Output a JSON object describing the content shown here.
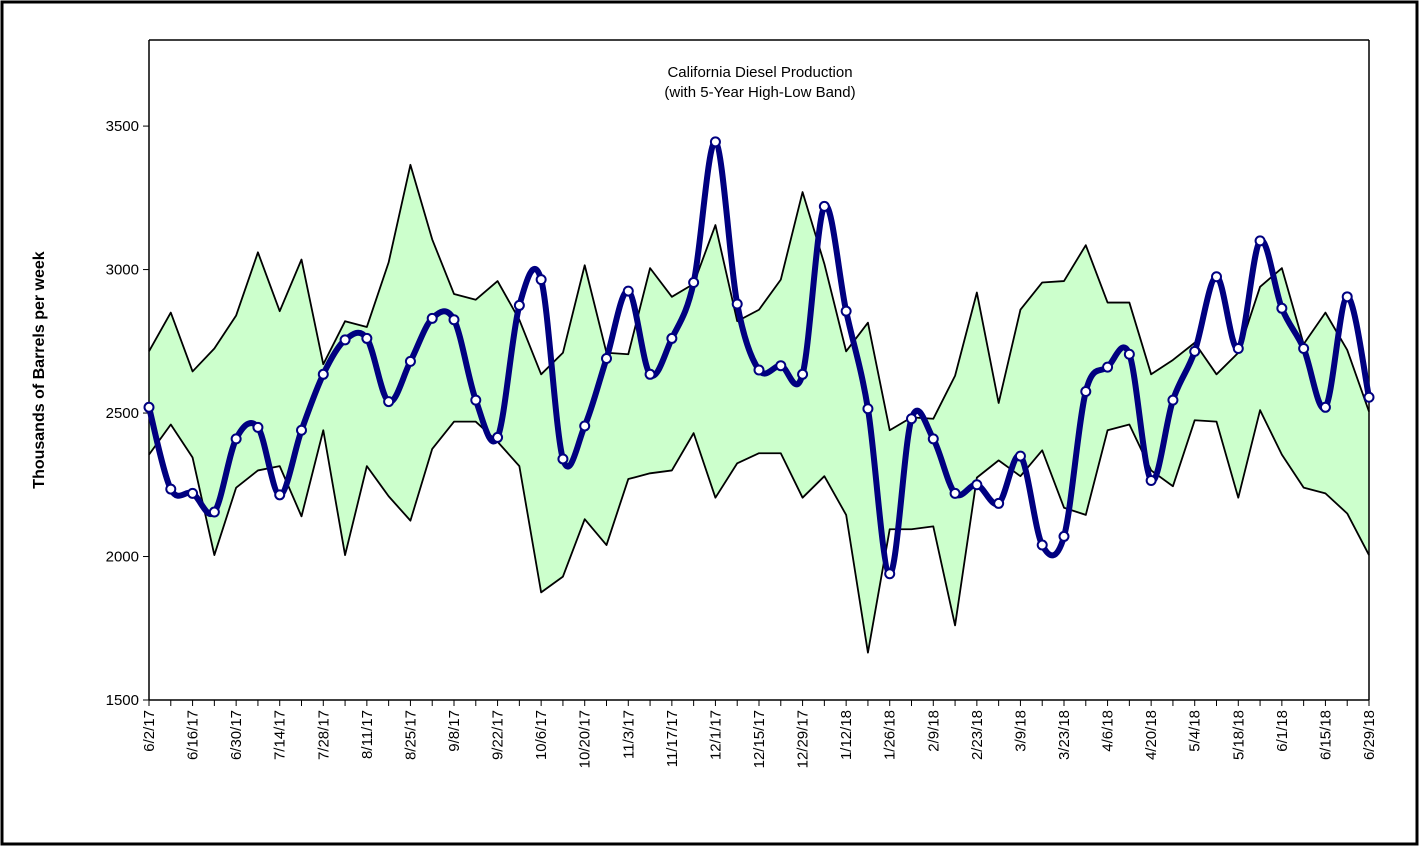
{
  "chart_data": {
    "type": "line",
    "title": "California Diesel Production",
    "subtitle": "(with 5-Year High-Low Band)",
    "y_label": "Thousands of Barrels per week",
    "categories": [
      "6/2/17",
      null,
      "6/16/17",
      null,
      "6/30/17",
      null,
      "7/14/17",
      null,
      "7/28/17",
      null,
      "8/11/17",
      null,
      "8/25/17",
      null,
      "9/8/17",
      null,
      "9/22/17",
      null,
      "10/6/17",
      null,
      "10/20/17",
      null,
      "11/3/17",
      null,
      "11/17/17",
      null,
      "12/1/17",
      null,
      "12/15/17",
      null,
      "12/29/17",
      null,
      "1/12/18",
      null,
      "1/26/18",
      null,
      "2/9/18",
      null,
      "2/23/18",
      null,
      "3/9/18",
      null,
      "3/23/18",
      null,
      "4/6/18",
      null,
      "4/20/18",
      null,
      "5/4/18",
      null,
      "5/18/18",
      null,
      "6/1/18",
      null,
      "6/15/18",
      null,
      "6/29/18"
    ],
    "series": [
      {
        "color": "#000080",
        "smooth": true,
        "markers": true,
        "values": [
          2520,
          2235,
          2220,
          2155,
          2410,
          2450,
          2215,
          2440,
          2635,
          2755,
          2760,
          2540,
          2680,
          2830,
          2825,
          2545,
          2415,
          2875,
          2965,
          2340,
          2455,
          2690,
          2925,
          2635,
          2760,
          2955,
          3445,
          2880,
          2650,
          2665,
          2635,
          3220,
          2855,
          2515,
          1940,
          2480,
          2410,
          2220,
          2250,
          2185,
          2350,
          2040,
          2070,
          2575,
          2660,
          2705,
          2265,
          2545,
          2715,
          2975,
          2725,
          3100,
          2865,
          2725,
          2520,
          2905,
          2555
        ]
      },
      {
        "color": "#000000",
        "values": [
          2715,
          2850,
          2645,
          2725,
          2840,
          3060,
          2855,
          3035,
          2670,
          2820,
          2800,
          3025,
          3365,
          3105,
          2915,
          2895,
          2960,
          2825,
          2635,
          2710,
          3015,
          2710,
          2705,
          3005,
          2905,
          2950,
          3155,
          2820,
          2860,
          2965,
          3270,
          3020,
          2715,
          2815,
          2440,
          2485,
          2480,
          2630,
          2920,
          2535,
          2860,
          2955,
          2960,
          3085,
          2885,
          2885,
          2635,
          2685,
          2745,
          2635,
          2710,
          2940,
          3005,
          2740,
          2850,
          2720,
          2505
        ]
      },
      {
        "color": "#000000",
        "values": [
          2355,
          2460,
          2345,
          2005,
          2240,
          2300,
          2315,
          2140,
          2440,
          2005,
          2315,
          2210,
          2125,
          2375,
          2470,
          2470,
          2400,
          2315,
          1875,
          1930,
          2130,
          2040,
          2270,
          2290,
          2300,
          2430,
          2205,
          2325,
          2360,
          2360,
          2205,
          2280,
          2145,
          1665,
          2095,
          2095,
          2105,
          1760,
          2275,
          2335,
          2280,
          2370,
          2170,
          2145,
          2440,
          2460,
          2300,
          2245,
          2475,
          2470,
          2205,
          2510,
          2355,
          2240,
          2220,
          2150,
          2005
        ]
      }
    ],
    "band_fill": "#ccffcc",
    "ylim": [
      1500,
      3800
    ],
    "yticks": [
      1500,
      2000,
      2500,
      3000,
      3500
    ],
    "grid": false
  }
}
